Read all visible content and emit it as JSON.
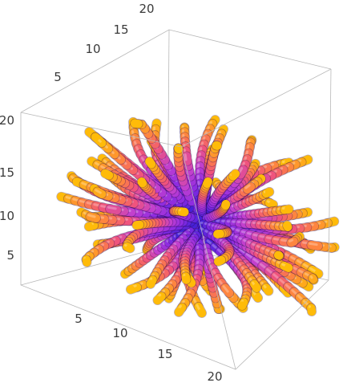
{
  "chart_data": {
    "type": "3d-stream-tubes",
    "title": "",
    "xlabel": "",
    "ylabel": "",
    "zlabel": "",
    "x_ticks": [
      "5",
      "10",
      "15",
      "20"
    ],
    "y_ticks": [
      "5",
      "10",
      "15",
      "20"
    ],
    "z_ticks": [
      "5",
      "10",
      "15",
      "20"
    ],
    "xlim": [
      0,
      22
    ],
    "ylim": [
      0,
      22
    ],
    "zlim": [
      0,
      22
    ],
    "colormap": [
      "#3b1fd6",
      "#8a2be2",
      "#c13fd0",
      "#f0557a",
      "#ff8a3a",
      "#ffc400"
    ],
    "center": [
      11,
      11,
      11
    ],
    "tube_count": 90
  }
}
